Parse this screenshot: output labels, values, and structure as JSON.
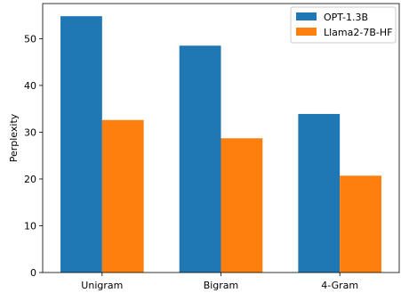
{
  "chart_data": {
    "type": "bar",
    "categories": [
      "Unigram",
      "Bigram",
      "4-Gram"
    ],
    "series": [
      {
        "name": "OPT-1.3B",
        "values": [
          54.8,
          48.5,
          33.9
        ],
        "color": "#1f77b4"
      },
      {
        "name": "Llama2-7B-HF",
        "values": [
          32.6,
          28.7,
          20.7
        ],
        "color": "#ff7f0e"
      }
    ],
    "title": "",
    "xlabel": "",
    "ylabel": "Perplexity",
    "ylim": [
      0,
      57.5
    ],
    "yticks": [
      0,
      10,
      20,
      30,
      40,
      50
    ],
    "grid": false,
    "legend_position": "top-right"
  }
}
